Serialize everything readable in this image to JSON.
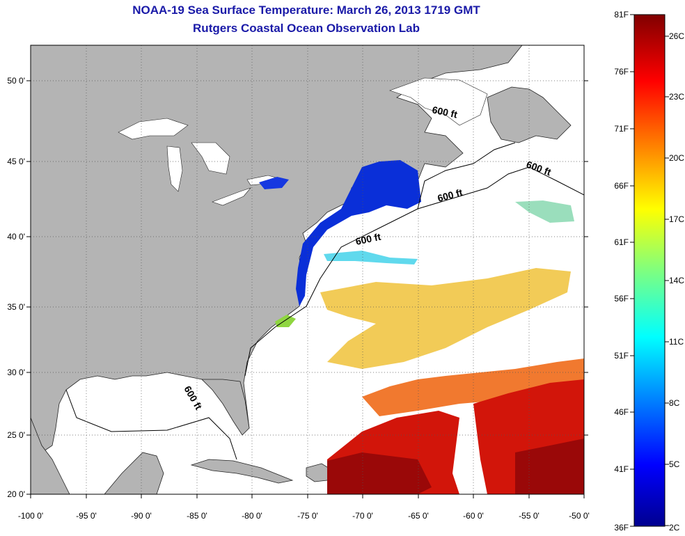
{
  "title": "NOAA-19 Sea Surface Temperature:  March 26, 2013 1719 GMT",
  "subtitle": "Rutgers Coastal Ocean Observation Lab",
  "map": {
    "lon_range": [
      -100,
      -50
    ],
    "lat_range": [
      20,
      52
    ],
    "lon_ticks": [
      "-100 0'",
      "-95 0'",
      "-90 0'",
      "-85 0'",
      "-80 0'",
      "-75 0'",
      "-70 0'",
      "-65 0'",
      "-60 0'",
      "-55 0'",
      "-50 0'"
    ],
    "lat_ticks": [
      "50 0'",
      "45 0'",
      "40 0'",
      "35 0'",
      "30 0'",
      "25 0'",
      "20 0'"
    ],
    "isobath_labels": [
      "600 ft",
      "600 ft",
      "600 ft",
      "600 ft",
      "600 ft"
    ],
    "land_color": "#b4b4b4",
    "grid": "dotted"
  },
  "colorbar": {
    "range_f": [
      36,
      81
    ],
    "range_c": [
      2,
      27
    ],
    "f_labels": [
      "81F",
      "76F",
      "71F",
      "66F",
      "61F",
      "56F",
      "51F",
      "46F",
      "41F",
      "36F"
    ],
    "c_labels": [
      "26C",
      "23C",
      "20C",
      "17C",
      "14C",
      "11C",
      "8C",
      "5C",
      "2C"
    ],
    "colormap": "jet"
  }
}
